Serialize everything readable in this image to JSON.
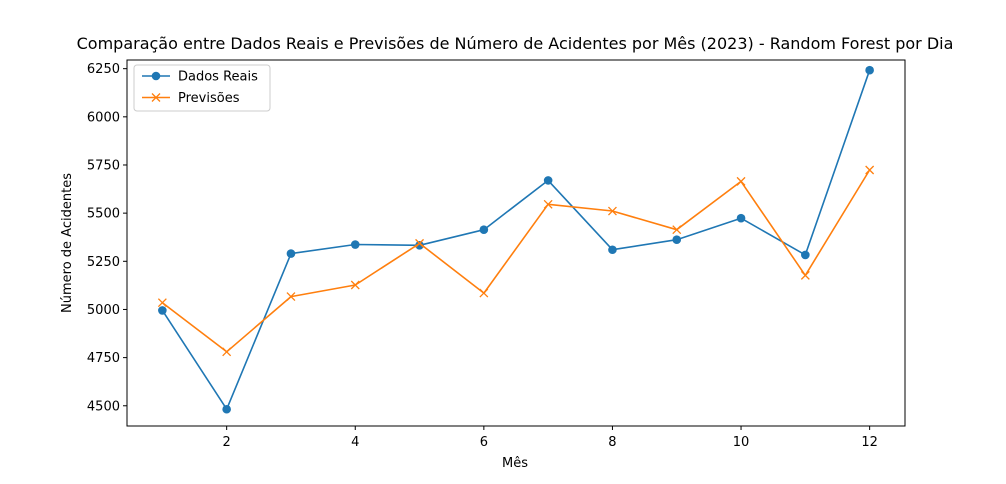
{
  "chart_data": {
    "type": "line",
    "title": "Comparação entre Dados Reais e Previsões de Número de Acidentes por Mês (2023) - Random Forest por Dia",
    "xlabel": "Mês",
    "ylabel": "Número de Acidentes",
    "x": [
      1,
      2,
      3,
      4,
      5,
      6,
      7,
      8,
      9,
      10,
      11,
      12
    ],
    "xlim": [
      0.45,
      12.55
    ],
    "ylim": [
      4395,
      6295
    ],
    "xticks": [
      2,
      4,
      6,
      8,
      10,
      12
    ],
    "yticks": [
      4500,
      4750,
      5000,
      5250,
      5500,
      5750,
      6000,
      6250
    ],
    "grid": false,
    "legend_position": "top-left",
    "series": [
      {
        "name": "Dados Reais",
        "marker": "circle",
        "color": "#1f77b4",
        "values": [
          4995,
          4482,
          5290,
          5337,
          5333,
          5414,
          5670,
          5310,
          5362,
          5474,
          5283,
          6242
        ]
      },
      {
        "name": "Previsões",
        "marker": "x",
        "color": "#ff7f0e",
        "values": [
          5035,
          4780,
          5067,
          5127,
          5343,
          5085,
          5546,
          5511,
          5414,
          5665,
          5177,
          5724
        ]
      }
    ]
  }
}
